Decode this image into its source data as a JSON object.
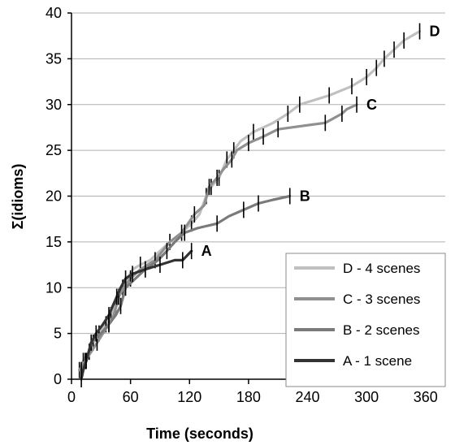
{
  "chart_data": {
    "type": "line",
    "title": "",
    "xlabel": "Time (seconds)",
    "ylabel": "Σ(idioms)",
    "xlim": [
      0,
      380
    ],
    "ylim": [
      0,
      40
    ],
    "xticks": [
      0,
      60,
      120,
      180,
      240,
      300,
      360
    ],
    "yticks": [
      0,
      5,
      10,
      15,
      20,
      25,
      30,
      35,
      40
    ],
    "grid": "horizontal",
    "legend_position": "bottom-right",
    "series": [
      {
        "name": "D - 4 scenes",
        "end_label": "D",
        "color": "#c0c0c0",
        "points": [
          [
            8,
            1
          ],
          [
            12,
            2
          ],
          [
            18,
            3
          ],
          [
            22,
            4
          ],
          [
            28,
            5
          ],
          [
            35,
            6
          ],
          [
            40,
            7
          ],
          [
            45,
            8
          ],
          [
            48,
            9
          ],
          [
            52,
            10
          ],
          [
            57,
            11
          ],
          [
            62,
            12
          ],
          [
            70,
            12.5
          ],
          [
            80,
            13
          ],
          [
            90,
            14
          ],
          [
            100,
            15
          ],
          [
            112,
            16
          ],
          [
            122,
            17
          ],
          [
            130,
            18
          ],
          [
            137,
            20
          ],
          [
            142,
            21
          ],
          [
            150,
            22
          ],
          [
            158,
            24
          ],
          [
            165,
            25
          ],
          [
            172,
            26
          ],
          [
            185,
            27
          ],
          [
            205,
            28
          ],
          [
            220,
            29
          ],
          [
            232,
            30
          ],
          [
            262,
            31
          ],
          [
            285,
            32
          ],
          [
            300,
            33
          ],
          [
            310,
            34
          ],
          [
            318,
            35
          ],
          [
            328,
            36
          ],
          [
            338,
            37
          ],
          [
            354,
            38
          ]
        ],
        "markers": [
          [
            8,
            1
          ],
          [
            12,
            2
          ],
          [
            18,
            3
          ],
          [
            22,
            4
          ],
          [
            28,
            5
          ],
          [
            35,
            6
          ],
          [
            40,
            7
          ],
          [
            45,
            8
          ],
          [
            52,
            10
          ],
          [
            70,
            12.5
          ],
          [
            100,
            15
          ],
          [
            122,
            17
          ],
          [
            137,
            20
          ],
          [
            142,
            21
          ],
          [
            150,
            22
          ],
          [
            158,
            24
          ],
          [
            165,
            25
          ],
          [
            185,
            27
          ],
          [
            220,
            29
          ],
          [
            232,
            30
          ],
          [
            262,
            31
          ],
          [
            285,
            32
          ],
          [
            300,
            33
          ],
          [
            310,
            34
          ],
          [
            318,
            35
          ],
          [
            328,
            36
          ],
          [
            338,
            37
          ],
          [
            354,
            38
          ]
        ]
      },
      {
        "name": "C - 3 scenes",
        "end_label": "C",
        "color": "#909090",
        "points": [
          [
            8,
            1
          ],
          [
            14,
            2
          ],
          [
            20,
            3
          ],
          [
            26,
            4
          ],
          [
            32,
            5
          ],
          [
            38,
            6
          ],
          [
            43,
            7
          ],
          [
            48,
            9
          ],
          [
            53,
            10
          ],
          [
            60,
            11
          ],
          [
            70,
            12
          ],
          [
            85,
            13
          ],
          [
            100,
            15
          ],
          [
            112,
            16
          ],
          [
            125,
            18
          ],
          [
            135,
            19
          ],
          [
            140,
            21
          ],
          [
            148,
            22
          ],
          [
            155,
            23
          ],
          [
            163,
            24
          ],
          [
            168,
            25
          ],
          [
            180,
            25.8
          ],
          [
            195,
            26.5
          ],
          [
            210,
            27.3
          ],
          [
            258,
            28
          ],
          [
            275,
            29
          ],
          [
            280,
            29.5
          ],
          [
            290,
            30
          ]
        ],
        "markers": [
          [
            14,
            2
          ],
          [
            26,
            4
          ],
          [
            38,
            6
          ],
          [
            48,
            9
          ],
          [
            60,
            11
          ],
          [
            85,
            13
          ],
          [
            112,
            16
          ],
          [
            125,
            18
          ],
          [
            140,
            21
          ],
          [
            148,
            22
          ],
          [
            163,
            24
          ],
          [
            180,
            25.8
          ],
          [
            195,
            26.5
          ],
          [
            210,
            27.3
          ],
          [
            258,
            28
          ],
          [
            275,
            29
          ],
          [
            290,
            30
          ]
        ]
      },
      {
        "name": "B - 2 scenes",
        "end_label": "B",
        "color": "#7a7a7a",
        "points": [
          [
            10,
            1
          ],
          [
            15,
            2
          ],
          [
            20,
            4
          ],
          [
            30,
            5
          ],
          [
            38,
            6
          ],
          [
            45,
            7
          ],
          [
            50,
            8
          ],
          [
            55,
            10
          ],
          [
            65,
            11
          ],
          [
            75,
            12
          ],
          [
            88,
            13
          ],
          [
            97,
            14
          ],
          [
            105,
            15
          ],
          [
            115,
            16
          ],
          [
            128,
            16.5
          ],
          [
            148,
            17
          ],
          [
            160,
            17.8
          ],
          [
            175,
            18.5
          ],
          [
            190,
            19.2
          ],
          [
            205,
            19.6
          ],
          [
            222,
            20
          ]
        ],
        "markers": [
          [
            10,
            1
          ],
          [
            20,
            4
          ],
          [
            38,
            6
          ],
          [
            50,
            8
          ],
          [
            55,
            10
          ],
          [
            75,
            12
          ],
          [
            97,
            14
          ],
          [
            115,
            16
          ],
          [
            148,
            17
          ],
          [
            175,
            18.5
          ],
          [
            190,
            19.2
          ],
          [
            222,
            20
          ]
        ]
      },
      {
        "name": "A - 1 scene",
        "end_label": "A",
        "color": "#333333",
        "points": [
          [
            10,
            0
          ],
          [
            12,
            1
          ],
          [
            15,
            2
          ],
          [
            20,
            4
          ],
          [
            25,
            5
          ],
          [
            32,
            6
          ],
          [
            38,
            7
          ],
          [
            42,
            8
          ],
          [
            46,
            9
          ],
          [
            50,
            10
          ],
          [
            55,
            11
          ],
          [
            62,
            11.5
          ],
          [
            75,
            12
          ],
          [
            90,
            12.5
          ],
          [
            105,
            13
          ],
          [
            113,
            13
          ],
          [
            122,
            14
          ]
        ],
        "markers": [
          [
            10,
            0
          ],
          [
            15,
            2
          ],
          [
            25,
            5
          ],
          [
            38,
            7
          ],
          [
            46,
            9
          ],
          [
            55,
            11
          ],
          [
            62,
            11.5
          ],
          [
            75,
            12
          ],
          [
            90,
            12.5
          ],
          [
            113,
            13
          ],
          [
            122,
            14
          ]
        ]
      }
    ],
    "legend": [
      {
        "label": "D - 4 scenes",
        "color": "#c0c0c0"
      },
      {
        "label": "C - 3 scenes",
        "color": "#909090"
      },
      {
        "label": "B - 2 scenes",
        "color": "#7a7a7a"
      },
      {
        "label": "A - 1 scene",
        "color": "#333333"
      }
    ]
  }
}
